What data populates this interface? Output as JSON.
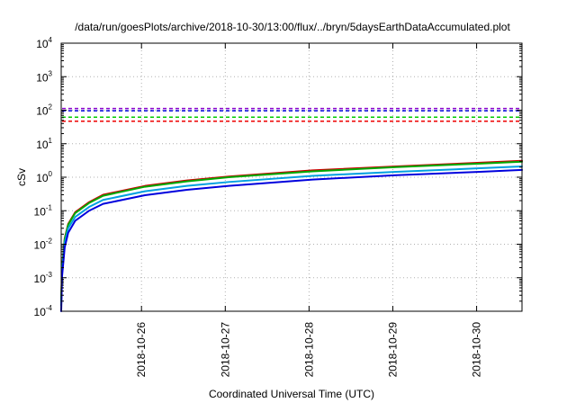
{
  "chart_data": {
    "type": "line",
    "title": "/data/run/goesPlots/archive/2018-10-30/13:00/flux/../bryn/5daysEarthDataAccumulated.plot",
    "xlabel": "Coordinated Universal Time (UTC)",
    "ylabel": "cSv",
    "y_scale": "log",
    "ylim": [
      0.0001,
      10000
    ],
    "xlim": [
      "2018-10-25T01:00",
      "2018-10-30T13:00"
    ],
    "x_tick_labels": [
      "2018-10-26",
      "2018-10-27",
      "2018-10-28",
      "2018-10-29",
      "2018-10-30"
    ],
    "y_tick_labels": [
      {
        "base": "10",
        "exp": "-4"
      },
      {
        "base": "10",
        "exp": "-3"
      },
      {
        "base": "10",
        "exp": "-2"
      },
      {
        "base": "10",
        "exp": "-1"
      },
      {
        "base": "10",
        "exp": "0"
      },
      {
        "base": "10",
        "exp": "1"
      },
      {
        "base": "10",
        "exp": "2"
      },
      {
        "base": "10",
        "exp": "3"
      },
      {
        "base": "10",
        "exp": "4"
      }
    ],
    "grid": true,
    "series": [
      {
        "color": "#cc0000",
        "style": "solid",
        "x": [
          "2018-10-25T01:00",
          "2018-10-25T01:15",
          "2018-10-25T02:00",
          "2018-10-25T03:00",
          "2018-10-25T05:00",
          "2018-10-25T09:00",
          "2018-10-25T13:00",
          "2018-10-26T01:00",
          "2018-10-26T13:00",
          "2018-10-27T01:00",
          "2018-10-28T01:00",
          "2018-10-29T01:00",
          "2018-10-30T01:00",
          "2018-10-30T13:00"
        ],
        "y": [
          0.0002,
          0.002,
          0.015,
          0.04,
          0.09,
          0.18,
          0.3,
          0.55,
          0.8,
          1.05,
          1.6,
          2.1,
          2.7,
          3.1
        ]
      },
      {
        "color": "#00aa00",
        "style": "solid",
        "x": [
          "2018-10-25T01:00",
          "2018-10-25T01:15",
          "2018-10-25T02:00",
          "2018-10-25T03:00",
          "2018-10-25T05:00",
          "2018-10-25T09:00",
          "2018-10-25T13:00",
          "2018-10-26T01:00",
          "2018-10-26T13:00",
          "2018-10-27T01:00",
          "2018-10-28T01:00",
          "2018-10-29T01:00",
          "2018-10-30T01:00",
          "2018-10-30T13:00"
        ],
        "y": [
          0.0002,
          0.0019,
          0.014,
          0.038,
          0.085,
          0.17,
          0.28,
          0.52,
          0.75,
          1.0,
          1.5,
          2.0,
          2.55,
          2.9
        ]
      },
      {
        "color": "#00a0e0",
        "style": "solid",
        "x": [
          "2018-10-25T01:00",
          "2018-10-25T01:15",
          "2018-10-25T02:00",
          "2018-10-25T03:00",
          "2018-10-25T05:00",
          "2018-10-25T09:00",
          "2018-10-25T13:00",
          "2018-10-26T01:00",
          "2018-10-26T13:00",
          "2018-10-27T01:00",
          "2018-10-28T01:00",
          "2018-10-29T01:00",
          "2018-10-30T01:00",
          "2018-10-30T13:00"
        ],
        "y": [
          0.00015,
          0.0015,
          0.011,
          0.03,
          0.065,
          0.13,
          0.21,
          0.38,
          0.55,
          0.72,
          1.1,
          1.45,
          1.85,
          2.1
        ]
      },
      {
        "color": "#0000dd",
        "style": "solid",
        "x": [
          "2018-10-25T01:00",
          "2018-10-25T01:15",
          "2018-10-25T02:00",
          "2018-10-25T03:00",
          "2018-10-25T05:00",
          "2018-10-25T09:00",
          "2018-10-25T13:00",
          "2018-10-26T01:00",
          "2018-10-26T13:00",
          "2018-10-27T01:00",
          "2018-10-28T01:00",
          "2018-10-29T01:00",
          "2018-10-30T01:00",
          "2018-10-30T13:00"
        ],
        "y": [
          0.0001,
          0.0011,
          0.008,
          0.022,
          0.05,
          0.1,
          0.16,
          0.29,
          0.42,
          0.55,
          0.85,
          1.15,
          1.45,
          1.65
        ]
      },
      {
        "color": "#8800cc",
        "style": "dashed",
        "x": [
          "2018-10-25T01:00",
          "2018-10-30T13:00"
        ],
        "y": [
          112,
          112
        ]
      },
      {
        "color": "#0000dd",
        "style": "dashed",
        "x": [
          "2018-10-25T01:00",
          "2018-10-30T13:00"
        ],
        "y": [
          96,
          96
        ]
      },
      {
        "color": "#00cc00",
        "style": "dashed",
        "x": [
          "2018-10-25T01:00",
          "2018-10-30T13:00"
        ],
        "y": [
          62,
          62
        ]
      },
      {
        "color": "#ee0000",
        "style": "dashed",
        "x": [
          "2018-10-25T01:00",
          "2018-10-30T13:00"
        ],
        "y": [
          47,
          47
        ]
      }
    ]
  }
}
